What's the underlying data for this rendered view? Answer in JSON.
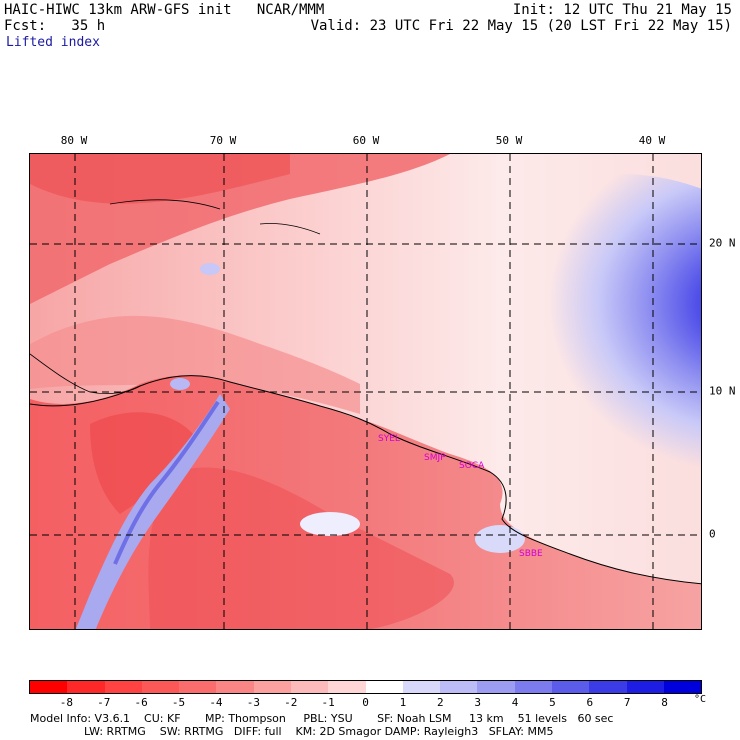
{
  "header": {
    "left_line1": "HAIC-HIWC 13km ARW-GFS init   NCAR/MMM",
    "left_line2": "Fcst:   35 h",
    "field_name": "Lifted index",
    "right_line1": "Init: 12 UTC Thu 21 May 15",
    "right_line2": "Valid: 23 UTC Fri 22 May 15 (20 LST Fri 22 May 15)"
  },
  "map": {
    "longitude_labels": [
      "80 W",
      "70 W",
      "60 W",
      "50 W",
      "40 W"
    ],
    "latitude_labels": [
      "20 N",
      "10 N",
      "0"
    ],
    "station_labels": [
      "SYEL",
      "SMJP",
      "SOCA",
      "SBBE"
    ],
    "colors": {
      "ocean_base": "#fdeeee",
      "land_base": "#f0787a",
      "grid": "#000000",
      "coast": "#000000"
    }
  },
  "colorbar": {
    "labels": [
      "-8",
      "-7",
      "-6",
      "-5",
      "-4",
      "-3",
      "-2",
      "-1",
      "0",
      "1",
      "2",
      "3",
      "4",
      "5",
      "6",
      "7",
      "8"
    ],
    "unit": "°C",
    "colors": [
      "#ff0000",
      "#ff2828",
      "#ff4242",
      "#fc5858",
      "#fb6d6d",
      "#f98585",
      "#fca0a0",
      "#fdbaba",
      "#ffd6d6",
      "#ffffff",
      "#d8d8fb",
      "#bcbcf7",
      "#9c9cf3",
      "#7c7cef",
      "#5c5ceb",
      "#3c3ce7",
      "#1d1de3",
      "#0000dc"
    ]
  },
  "footer": {
    "line1": "Model Info: V3.6.1    CU: KF       MP: Thompson     PBL: YSU       SF: Noah LSM     13 km    51 levels   60 sec",
    "line2": "LW: RRTMG    SW: RRTMG   DIFF: full    KM: 2D Smagor DAMP: Rayleigh3   SFLAY: MM5"
  }
}
